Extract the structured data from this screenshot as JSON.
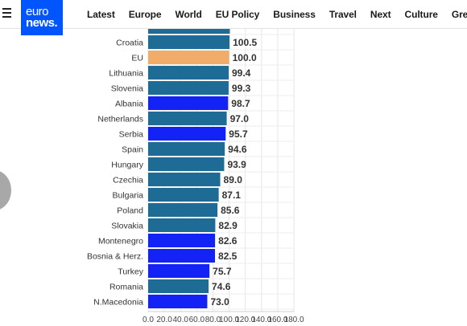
{
  "header": {
    "logo_line1": "euro",
    "logo_line2": "news.",
    "nav": [
      {
        "label": "Latest",
        "id": "latest"
      },
      {
        "label": "Europe",
        "id": "europe"
      },
      {
        "label": "World",
        "id": "world"
      },
      {
        "label": "EU Policy",
        "id": "eu-policy"
      },
      {
        "label": "Business",
        "id": "business"
      },
      {
        "label": "Travel",
        "id": "travel"
      },
      {
        "label": "Next",
        "id": "next"
      },
      {
        "label": "Culture",
        "id": "culture"
      },
      {
        "label": "Greer",
        "id": "green"
      }
    ]
  },
  "chart_data": {
    "type": "bar",
    "orientation": "horizontal",
    "categories": [
      "Croatia",
      "EU",
      "Lithuania",
      "Slovenia",
      "Albania",
      "Netherlands",
      "Serbia",
      "Spain",
      "Hungary",
      "Czechia",
      "Bulgaria",
      "Poland",
      "Slovakia",
      "Montenegro",
      "Bosnia & Herz.",
      "Turkey",
      "Romania",
      "N.Macedonia"
    ],
    "values": [
      100.5,
      100.0,
      99.4,
      99.3,
      98.7,
      97.0,
      95.7,
      94.6,
      93.9,
      89.0,
      87.1,
      85.6,
      82.9,
      82.6,
      82.5,
      75.7,
      74.6,
      73.0
    ],
    "value_labels": [
      "100.5",
      "100.0",
      "99.4",
      "99.3",
      "98.7",
      "97.0",
      "95.7",
      "94.6",
      "93.9",
      "89.0",
      "87.1",
      "85.6",
      "82.9",
      "82.6",
      "82.5",
      "75.7",
      "74.6",
      "73.0"
    ],
    "group": [
      "eu",
      "eu-average",
      "eu",
      "eu",
      "candidate",
      "eu",
      "candidate",
      "eu",
      "eu",
      "eu",
      "eu",
      "eu",
      "eu",
      "candidate",
      "candidate",
      "candidate",
      "eu",
      "candidate"
    ],
    "colors": {
      "eu": "#1e6b96",
      "eu-average": "#f2ac6a",
      "candidate": "#1423f5"
    },
    "xlim": [
      0,
      180
    ],
    "xticks": [
      "0.0",
      "20.0",
      "40.0",
      "60.0",
      "80.0",
      "100.0",
      "120.0",
      "140.0",
      "160.0",
      "180.0"
    ],
    "grid": true
  }
}
